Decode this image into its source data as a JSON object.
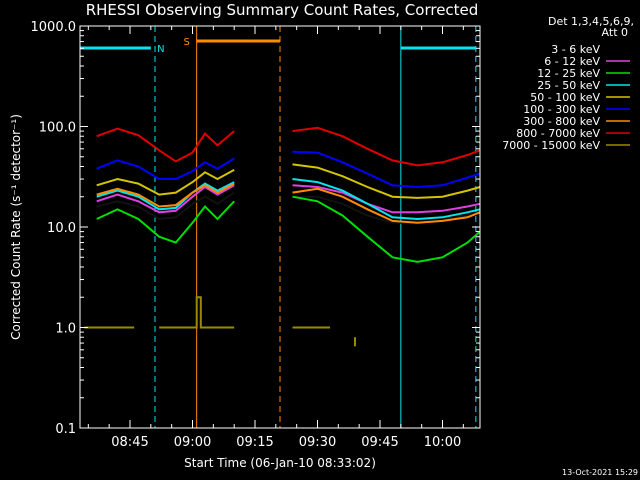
{
  "chart_data": {
    "type": "line",
    "title": "RHESSI Observing Summary Count Rates, Corrected",
    "xlabel": "Start Time (06-Jan-10 08:33:02)",
    "ylabel": "Corrected Count Rate (s⁻¹ detector⁻¹)",
    "yscale": "log",
    "ylim": [
      0.1,
      1000
    ],
    "xlim": [
      "08:33",
      "10:09"
    ],
    "y_ticks": [
      "1000.0",
      "100.0",
      "10.0",
      "1.0",
      "0.1"
    ],
    "x_ticks": [
      "08:45",
      "09:00",
      "09:15",
      "09:30",
      "09:45",
      "10:00"
    ],
    "legend_title": [
      "Det 1,3,4,5,6,9,",
      "Att 0"
    ],
    "legend_position": "right",
    "footer_date": "13-Oct-2021 15:29",
    "flags": [
      {
        "label": "N",
        "color": "#00e5ee",
        "intervals": [
          [
            "08:33",
            "08:50"
          ],
          [
            "09:50",
            "10:08"
          ]
        ]
      },
      {
        "label": "S",
        "color": "#ff8c00",
        "intervals": [
          [
            "09:01",
            "09:21"
          ]
        ]
      }
    ],
    "vlines": [
      {
        "time": "08:33",
        "color": "#00e5ee",
        "style": "solid"
      },
      {
        "time": "08:51",
        "color": "#00e5ee",
        "style": "dashed"
      },
      {
        "time": "09:01",
        "color": "#ff8c00",
        "style": "solid"
      },
      {
        "time": "09:21",
        "color": "#ff8c00",
        "style": "dashed"
      },
      {
        "time": "09:50",
        "color": "#00e5ee",
        "style": "solid"
      },
      {
        "time": "10:08",
        "color": "#00e5ee",
        "style": "dashed"
      }
    ],
    "series": [
      {
        "name": "3 - 6 keV",
        "color": "#000000",
        "segments": [
          [
            [
              "08:37",
              16
            ],
            [
              "08:42",
              18
            ],
            [
              "08:47",
              16
            ],
            [
              "08:52",
              12
            ],
            [
              "08:56",
              12.5
            ],
            [
              "09:00",
              17
            ],
            [
              "09:03",
              20
            ],
            [
              "09:06",
              17
            ],
            [
              "09:10",
              22
            ]
          ],
          [
            [
              "09:24",
              20
            ],
            [
              "09:30",
              20
            ],
            [
              "09:36",
              17
            ],
            [
              "09:42",
              13
            ],
            [
              "09:48",
              11
            ],
            [
              "09:54",
              11
            ],
            [
              "10:00",
              11.5
            ],
            [
              "10:06",
              13
            ],
            [
              "10:09",
              14
            ]
          ]
        ]
      },
      {
        "name": "6 - 12 keV",
        "color": "#e040e0",
        "segments": [
          [
            [
              "08:37",
              18
            ],
            [
              "08:42",
              21
            ],
            [
              "08:47",
              18
            ],
            [
              "08:52",
              14
            ],
            [
              "08:56",
              14.5
            ],
            [
              "09:00",
              20
            ],
            [
              "09:03",
              25
            ],
            [
              "09:06",
              21
            ],
            [
              "09:10",
              26
            ]
          ],
          [
            [
              "09:24",
              26
            ],
            [
              "09:30",
              25
            ],
            [
              "09:36",
              22
            ],
            [
              "09:42",
              17
            ],
            [
              "09:48",
              14
            ],
            [
              "09:54",
              14
            ],
            [
              "10:00",
              14.5
            ],
            [
              "10:06",
              16
            ],
            [
              "10:09",
              17
            ]
          ]
        ]
      },
      {
        "name": "12 - 25 keV",
        "color": "#00e000",
        "segments": [
          [
            [
              "08:37",
              12
            ],
            [
              "08:42",
              15
            ],
            [
              "08:47",
              12
            ],
            [
              "08:52",
              8
            ],
            [
              "08:56",
              7
            ],
            [
              "09:00",
              11
            ],
            [
              "09:03",
              16
            ],
            [
              "09:06",
              12
            ],
            [
              "09:10",
              18
            ]
          ],
          [
            [
              "09:24",
              20
            ],
            [
              "09:30",
              18
            ],
            [
              "09:36",
              13
            ],
            [
              "09:42",
              8
            ],
            [
              "09:48",
              5
            ],
            [
              "09:54",
              4.5
            ],
            [
              "10:00",
              5
            ],
            [
              "10:06",
              7
            ],
            [
              "10:09",
              9
            ]
          ]
        ]
      },
      {
        "name": "25 - 50 keV",
        "color": "#00e5ee",
        "segments": [
          [
            [
              "08:37",
              20
            ],
            [
              "08:42",
              23
            ],
            [
              "08:47",
              20
            ],
            [
              "08:52",
              15
            ],
            [
              "08:56",
              15.5
            ],
            [
              "09:00",
              22
            ],
            [
              "09:03",
              27
            ],
            [
              "09:06",
              23
            ],
            [
              "09:10",
              28
            ]
          ],
          [
            [
              "09:24",
              30
            ],
            [
              "09:30",
              28
            ],
            [
              "09:36",
              23
            ],
            [
              "09:42",
              17
            ],
            [
              "09:48",
              12.5
            ],
            [
              "09:54",
              12
            ],
            [
              "10:00",
              12.5
            ],
            [
              "10:06",
              14
            ],
            [
              "10:09",
              15
            ]
          ]
        ]
      },
      {
        "name": "50 - 100 keV",
        "color": "#d4c400",
        "segments": [
          [
            [
              "08:37",
              26
            ],
            [
              "08:42",
              30
            ],
            [
              "08:47",
              27
            ],
            [
              "08:52",
              21
            ],
            [
              "08:56",
              22
            ],
            [
              "09:00",
              28
            ],
            [
              "09:03",
              35
            ],
            [
              "09:06",
              30
            ],
            [
              "09:10",
              37
            ]
          ],
          [
            [
              "09:24",
              42
            ],
            [
              "09:30",
              39
            ],
            [
              "09:36",
              32
            ],
            [
              "09:42",
              25
            ],
            [
              "09:48",
              20
            ],
            [
              "09:54",
              19.5
            ],
            [
              "10:00",
              20
            ],
            [
              "10:06",
              23
            ],
            [
              "10:09",
              25
            ]
          ]
        ]
      },
      {
        "name": "100 - 300 keV",
        "color": "#0000ff",
        "segments": [
          [
            [
              "08:37",
              38
            ],
            [
              "08:42",
              46
            ],
            [
              "08:47",
              40
            ],
            [
              "08:52",
              30
            ],
            [
              "08:56",
              30
            ],
            [
              "09:00",
              36
            ],
            [
              "09:03",
              44
            ],
            [
              "09:06",
              38
            ],
            [
              "09:10",
              48
            ]
          ],
          [
            [
              "09:24",
              56
            ],
            [
              "09:30",
              55
            ],
            [
              "09:36",
              44
            ],
            [
              "09:42",
              34
            ],
            [
              "09:48",
              26
            ],
            [
              "09:54",
              25
            ],
            [
              "10:00",
              26
            ],
            [
              "10:06",
              31
            ],
            [
              "10:09",
              34
            ]
          ]
        ]
      },
      {
        "name": "300 - 800 keV",
        "color": "#ff8c00",
        "segments": [
          [
            [
              "08:37",
              21
            ],
            [
              "08:42",
              24
            ],
            [
              "08:47",
              21
            ],
            [
              "08:52",
              16
            ],
            [
              "08:56",
              16.5
            ],
            [
              "09:00",
              22
            ],
            [
              "09:03",
              26
            ],
            [
              "09:06",
              22
            ],
            [
              "09:10",
              27
            ]
          ],
          [
            [
              "09:24",
              22
            ],
            [
              "09:30",
              24
            ],
            [
              "09:36",
              20
            ],
            [
              "09:42",
              15
            ],
            [
              "09:48",
              11.5
            ],
            [
              "09:54",
              11
            ],
            [
              "10:00",
              11.5
            ],
            [
              "10:06",
              12.5
            ],
            [
              "10:09",
              14
            ]
          ]
        ]
      },
      {
        "name": "800 - 7000 keV",
        "color": "#e00000",
        "segments": [
          [
            [
              "08:37",
              80
            ],
            [
              "08:42",
              95
            ],
            [
              "08:47",
              82
            ],
            [
              "08:52",
              58
            ],
            [
              "08:56",
              45
            ],
            [
              "09:00",
              55
            ],
            [
              "09:03",
              85
            ],
            [
              "09:06",
              65
            ],
            [
              "09:10",
              90
            ]
          ],
          [
            [
              "09:24",
              90
            ],
            [
              "09:30",
              97
            ],
            [
              "09:36",
              80
            ],
            [
              "09:42",
              60
            ],
            [
              "09:48",
              46
            ],
            [
              "09:54",
              41
            ],
            [
              "10:00",
              44
            ],
            [
              "10:06",
              52
            ],
            [
              "10:09",
              58
            ]
          ]
        ]
      },
      {
        "name": "7000 - 15000 keV",
        "color": "#9a8a00",
        "segments": [
          [
            [
              "08:34",
              1
            ],
            [
              "08:46",
              1
            ]
          ],
          [
            [
              "08:52",
              1
            ],
            [
              "09:01",
              1
            ],
            [
              "09:01",
              2
            ],
            [
              "09:02",
              2
            ],
            [
              "09:02",
              1
            ],
            [
              "09:10",
              1
            ]
          ],
          [
            [
              "09:24",
              1
            ],
            [
              "09:33",
              1
            ]
          ],
          [
            [
              "09:39",
              0.8
            ],
            [
              "09:39",
              0.65
            ]
          ]
        ]
      }
    ]
  }
}
